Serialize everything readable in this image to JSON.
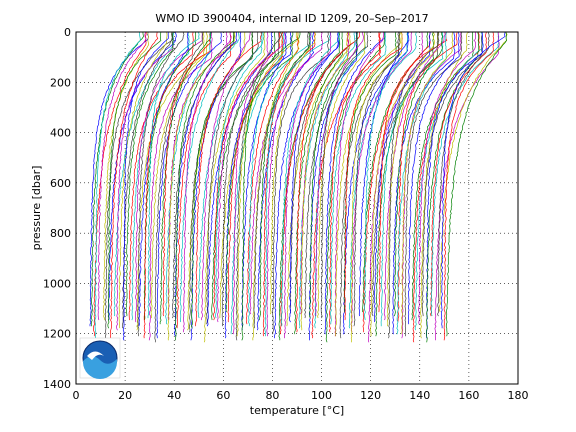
{
  "chart_data": {
    "type": "line",
    "title": "WMO ID 3900404, internal ID 1209, 20–Sep–2017",
    "xlabel": "temperature [°C]",
    "ylabel": "pressure [dbar]",
    "xlim": [
      0,
      180
    ],
    "ylim": [
      1400,
      0
    ],
    "y_reversed": true,
    "grid": true,
    "x_ticks": [
      "0",
      "20",
      "40",
      "60",
      "80",
      "100",
      "120",
      "140",
      "160",
      "180"
    ],
    "y_ticks": [
      "0",
      "200",
      "400",
      "600",
      "800",
      "1000",
      "1200",
      "1400"
    ],
    "profile_offset_note": "profiles offset horizontally",
    "series_colors": [
      "#0000ff",
      "#008000",
      "#ff0000",
      "#00bfbf",
      "#bf00bf",
      "#bfbf00",
      "#404040"
    ],
    "profile_count": 150,
    "offset_start": 5,
    "offset_end": 150,
    "surface_anomaly": 25,
    "deep_anomaly": 0,
    "logo": "noaa-logo"
  }
}
